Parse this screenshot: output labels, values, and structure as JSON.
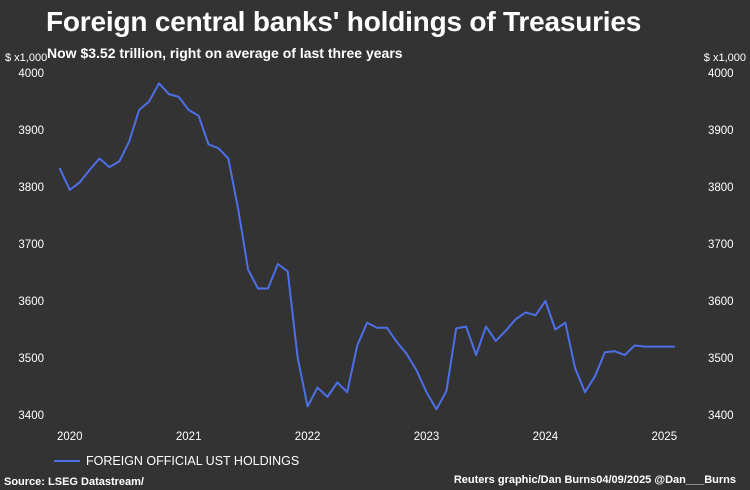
{
  "chart_data": {
    "type": "line",
    "title": "Foreign central banks' holdings of Treasuries",
    "subtitle": "Now $3.52 trillion, right on average of last three years",
    "unit_label": "$ x1,000",
    "ylim": [
      3400,
      4000
    ],
    "yticks": [
      3400,
      3500,
      3600,
      3700,
      3800,
      3900,
      4000
    ],
    "xlim": [
      2019.8,
      2025.3
    ],
    "xticks": [
      {
        "label": "2020",
        "value": 2020.0
      },
      {
        "label": "2021",
        "value": 2021.0
      },
      {
        "label": "2022",
        "value": 2022.0
      },
      {
        "label": "2023",
        "value": 2023.0
      },
      {
        "label": "2024",
        "value": 2024.0
      },
      {
        "label": "2025",
        "value": 2025.0
      }
    ],
    "grid": false,
    "legend_position": "bottom-left",
    "series": [
      {
        "name": "FOREIGN OFFICIAL UST HOLDINGS",
        "color": "#4d6fe8",
        "x": [
          2019.917,
          2020.0,
          2020.083,
          2020.167,
          2020.25,
          2020.333,
          2020.417,
          2020.5,
          2020.583,
          2020.667,
          2020.75,
          2020.833,
          2020.917,
          2021.0,
          2021.083,
          2021.167,
          2021.25,
          2021.333,
          2021.417,
          2021.5,
          2021.583,
          2021.667,
          2021.75,
          2021.833,
          2021.917,
          2022.0,
          2022.083,
          2022.167,
          2022.25,
          2022.333,
          2022.417,
          2022.5,
          2022.583,
          2022.667,
          2022.75,
          2022.833,
          2022.917,
          2023.0,
          2023.083,
          2023.167,
          2023.25,
          2023.333,
          2023.417,
          2023.5,
          2023.583,
          2023.667,
          2023.75,
          2023.833,
          2023.917,
          2024.0,
          2024.083,
          2024.167,
          2024.25,
          2024.333,
          2024.417,
          2024.5,
          2024.583,
          2024.667,
          2024.75,
          2024.833,
          2024.917,
          2025.0,
          2025.083
        ],
        "values": [
          3832,
          3795,
          3808,
          3830,
          3850,
          3835,
          3845,
          3880,
          3935,
          3950,
          3982,
          3963,
          3958,
          3935,
          3925,
          3875,
          3868,
          3850,
          3760,
          3655,
          3622,
          3622,
          3665,
          3652,
          3500,
          3415,
          3448,
          3432,
          3457,
          3440,
          3522,
          3562,
          3553,
          3553,
          3528,
          3507,
          3478,
          3440,
          3410,
          3442,
          3552,
          3555,
          3505,
          3555,
          3530,
          3548,
          3568,
          3580,
          3575,
          3600,
          3550,
          3562,
          3482,
          3440,
          3468,
          3510,
          3512,
          3505,
          3522,
          3520,
          3520,
          3520,
          3520
        ]
      }
    ]
  },
  "footer": {
    "source": "Source: LSEG Datastream/",
    "credit": "Reuters graphic/Dan Burns04/09/2025 @Dan___Burns"
  }
}
